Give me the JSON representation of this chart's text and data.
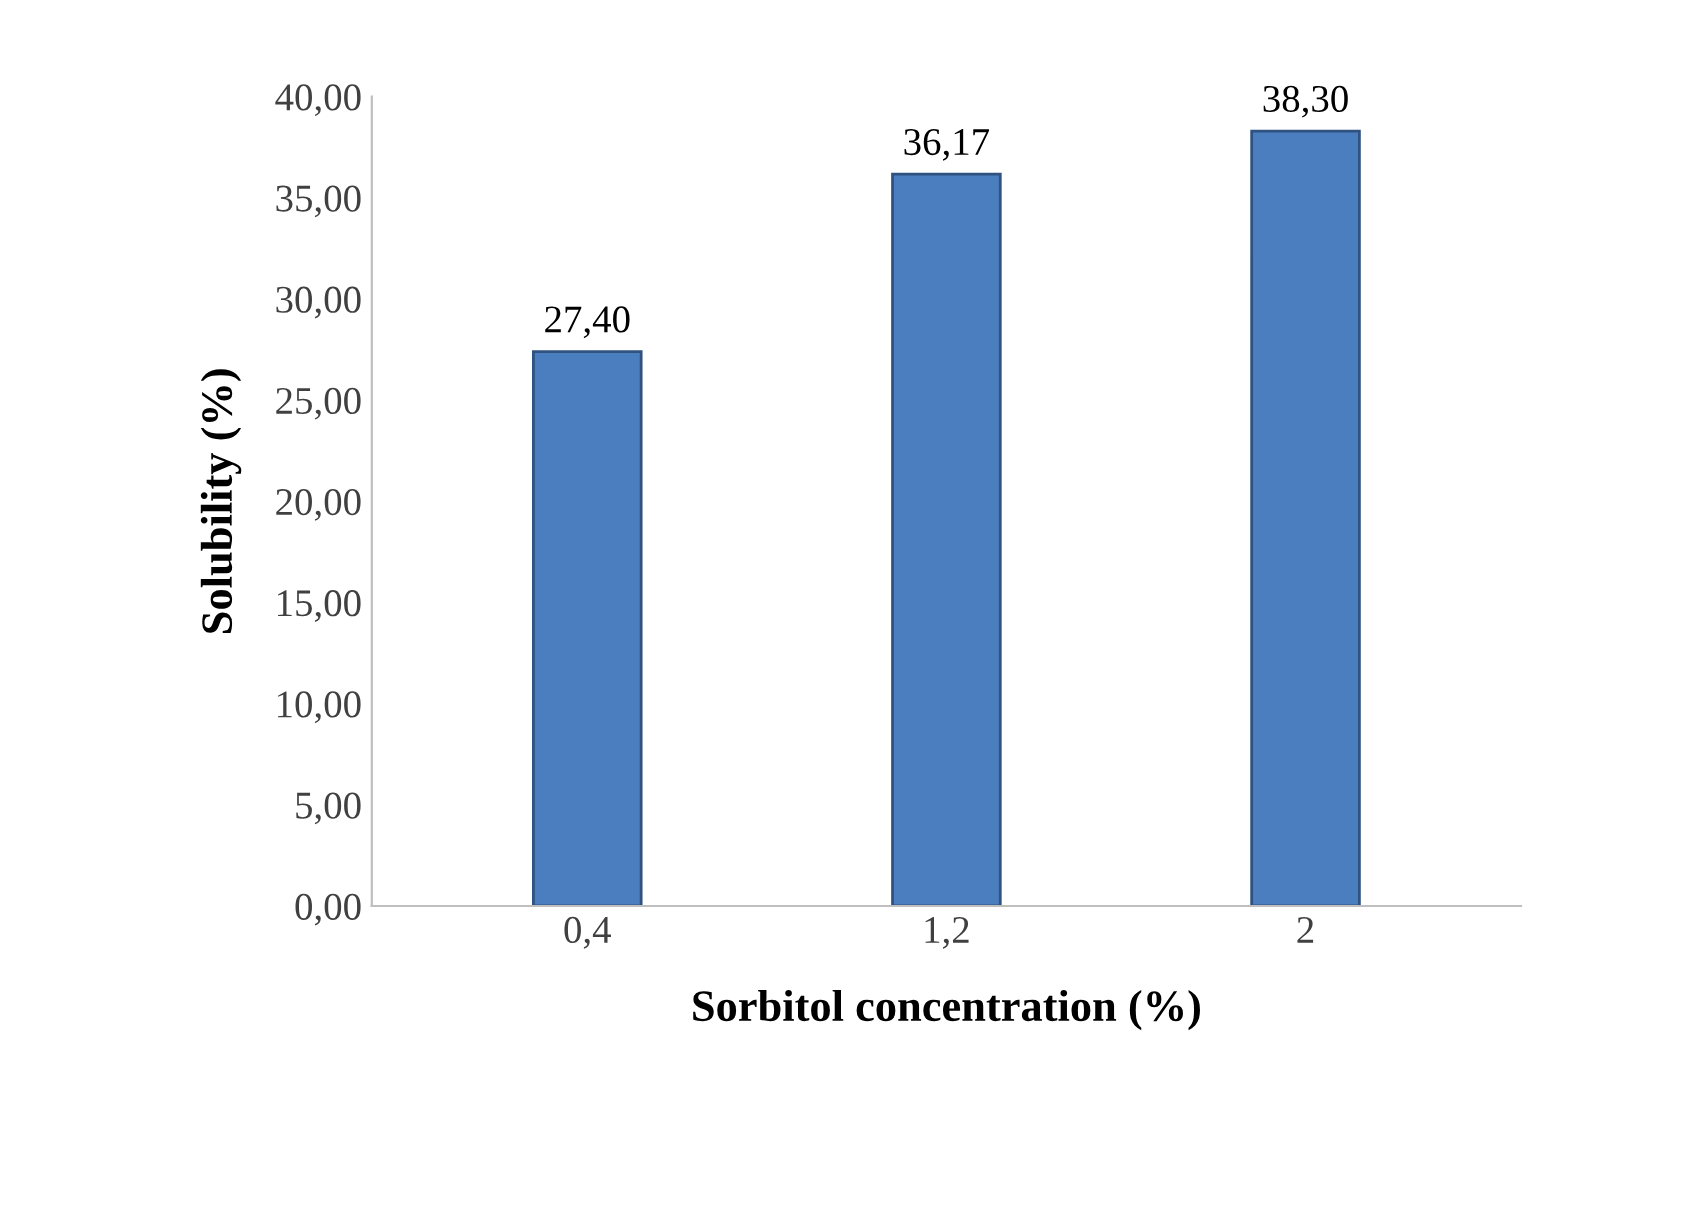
{
  "chart_data": {
    "type": "bar",
    "xlabel": "Sorbitol concentration (%)",
    "ylabel": "Solubility (%)",
    "categories": [
      "0,4",
      "1,2",
      "2"
    ],
    "values": [
      27.4,
      36.17,
      38.3
    ],
    "value_labels": [
      "27,40",
      "36,17",
      "38,30"
    ],
    "color": "#4a7ebf",
    "ylim": [
      0,
      40
    ],
    "yticks": [
      {
        "value": 0,
        "label": "0,00"
      },
      {
        "value": 5,
        "label": "5,00"
      },
      {
        "value": 10,
        "label": "10,00"
      },
      {
        "value": 15,
        "label": "15,00"
      },
      {
        "value": 20,
        "label": "20,00"
      },
      {
        "value": 25,
        "label": "25,00"
      },
      {
        "value": 30,
        "label": "30,00"
      },
      {
        "value": 35,
        "label": "35,00"
      },
      {
        "value": 40,
        "label": "40,00"
      }
    ],
    "grid": false
  }
}
